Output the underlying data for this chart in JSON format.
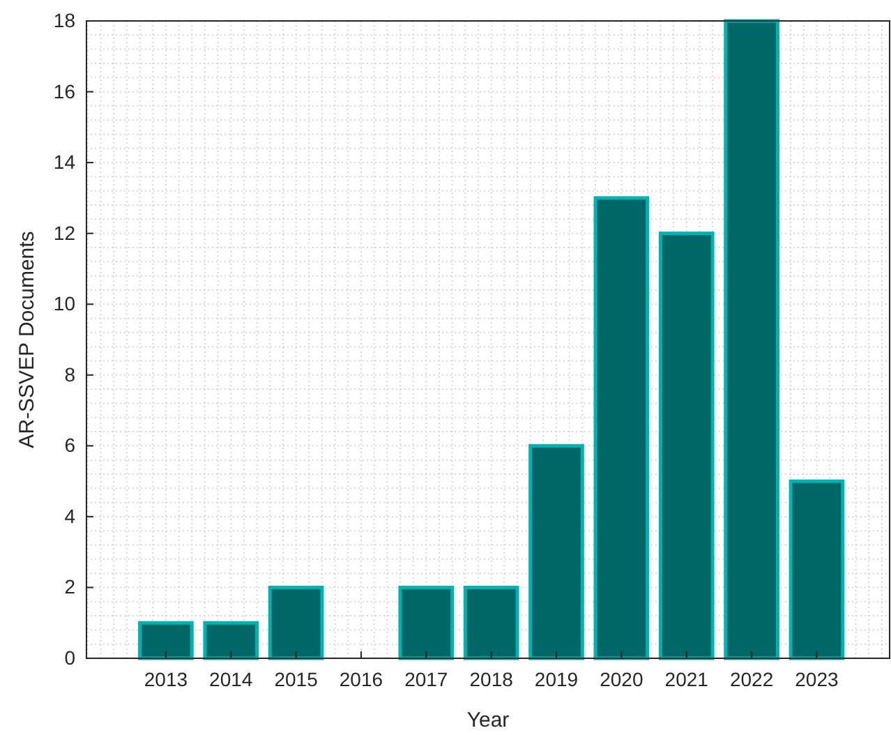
{
  "chart_data": {
    "type": "bar",
    "xlabel": "Year",
    "ylabel": "AR-SSVEP Documents",
    "categories": [
      "2013",
      "2014",
      "2015",
      "2016",
      "2017",
      "2018",
      "2019",
      "2020",
      "2021",
      "2022",
      "2023"
    ],
    "values": [
      1,
      1,
      2,
      0,
      2,
      2,
      6,
      13,
      12,
      18,
      5
    ],
    "color": "#006666",
    "ylim": [
      0,
      18
    ],
    "yticks": [
      0,
      2,
      4,
      6,
      8,
      10,
      12,
      14,
      16,
      18
    ],
    "grid": true
  }
}
